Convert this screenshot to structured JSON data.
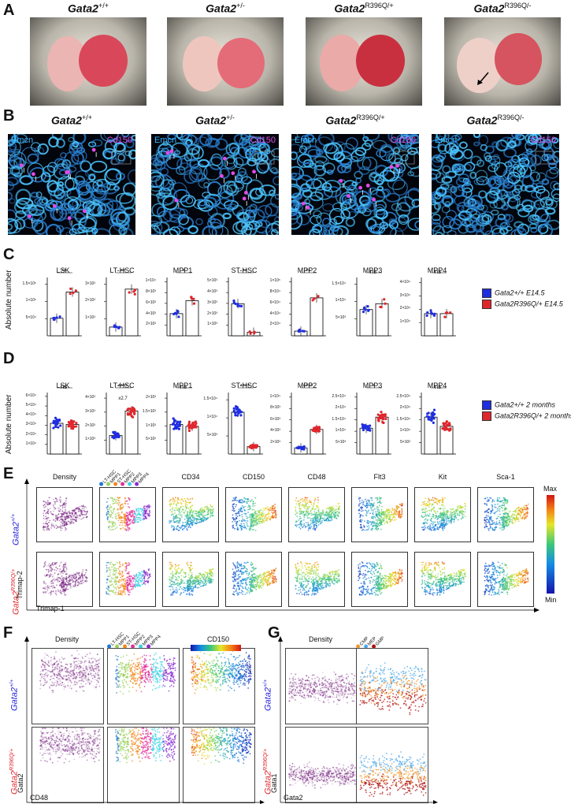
{
  "panels": [
    "A",
    "B",
    "C",
    "D",
    "E",
    "F",
    "G"
  ],
  "genotypes": [
    {
      "base": "Gata2",
      "sup": "+/+",
      "color": "#1a1ad6"
    },
    {
      "base": "Gata2",
      "sup": "+/-"
    },
    {
      "base": "Gata2",
      "sup": "R396Q/+",
      "color": "#e0262c"
    },
    {
      "base": "Gata2",
      "sup": "R396Q/-"
    }
  ],
  "panelB": {
    "stain1": "Emcn",
    "stain2": "Cd150",
    "stain1_color": "#39b6ff",
    "stain2_color": "#e24be8"
  },
  "panelC": {
    "ylabel": "Absolute number",
    "legend": [
      {
        "label": "Gata2+/+ E14.5",
        "color": "#1f2ee0"
      },
      {
        "label": "Gata2R396Q/+ E14.5",
        "color": "#e0262c"
      }
    ],
    "plots": [
      {
        "title": "LSK",
        "sig": "**",
        "yticks": [
          "5×10⁴",
          "1×10⁵",
          "1.5×10⁵"
        ]
      },
      {
        "title": "LT-HSC",
        "sig": "**",
        "yticks": [
          "1×10³",
          "2×10³",
          "3×10³"
        ]
      },
      {
        "title": "MPP1",
        "sig": "*",
        "yticks": [
          "2×10³",
          "4×10³",
          "6×10³",
          "8×10³",
          "1×10⁴"
        ]
      },
      {
        "title": "ST-HSC",
        "sig": "**",
        "yticks": [
          "1×10³",
          "2×10³",
          "3×10³",
          "4×10³",
          "5×10³"
        ]
      },
      {
        "title": "MPP2",
        "sig": "**",
        "yticks": [
          "2×10⁴",
          "4×10⁴",
          "6×10⁴",
          "8×10⁴",
          "1×10⁵"
        ]
      },
      {
        "title": "MPP3",
        "sig": "ns",
        "yticks": [
          "5×10³",
          "1×10⁴",
          "1.5×10⁴"
        ]
      },
      {
        "title": "MPP4",
        "sig": "ns",
        "yticks": [
          "1×10⁴",
          "2×10⁴",
          "3×10⁴",
          "4×10⁴"
        ]
      }
    ]
  },
  "panelD": {
    "ylabel": "Absolute number",
    "legend": [
      {
        "label": "Gata2+/+ 2 months",
        "color": "#1f2ee0"
      },
      {
        "label": "Gata2R396Q/+ 2 months",
        "color": "#e0262c"
      }
    ],
    "plots": [
      {
        "title": "LSK",
        "sig": "ns",
        "yticks": [
          "1×10⁴",
          "2×10⁴",
          "3×10⁴",
          "4×10⁴",
          "5×10⁴",
          "6×10⁴"
        ]
      },
      {
        "title": "LT-HSC",
        "sig": "****",
        "note": "x2.7",
        "yticks": [
          "1×10³",
          "2×10³",
          "3×10³",
          "4×10³"
        ]
      },
      {
        "title": "MPP1",
        "sig": "ns",
        "yticks": [
          "5×10²",
          "1×10³",
          "1.5×10³",
          "2×10³"
        ]
      },
      {
        "title": "ST-HSC",
        "sig": "****",
        "yticks": [
          "5×10³",
          "1×10⁴",
          "1.5×10⁴"
        ]
      },
      {
        "title": "MPP2",
        "sig": "****",
        "yticks": [
          "2×10³",
          "4×10³",
          "6×10³",
          "8×10³",
          "1×10⁴"
        ]
      },
      {
        "title": "MPP3",
        "sig": "*",
        "yticks": [
          "5×10³",
          "1×10⁴",
          "1.5×10⁴",
          "2×10⁴",
          "2.5×10⁴"
        ]
      },
      {
        "title": "MPP4",
        "sig": "ns",
        "yticks": [
          "5×10³",
          "1×10⁴",
          "1.5×10⁴",
          "2×10⁴",
          "2.5×10⁴"
        ]
      }
    ]
  },
  "panelE": {
    "columns": [
      "Density",
      "",
      "CD34",
      "CD150",
      "CD48",
      "Flt3",
      "Kit",
      "Sca-1"
    ],
    "populations": [
      "LT-HSC",
      "MPP1",
      "ST-HSC",
      "MPP2",
      "MPP3",
      "MPP4"
    ],
    "population_colors": [
      "#1f78d0",
      "#9bd25a",
      "#f08a1c",
      "#e0329c",
      "#3cd2e6",
      "#8a2bd0"
    ],
    "xlabel": "Trimap-1",
    "ylabel": "Trimap-2",
    "scale_max": "Max",
    "scale_min": "Min"
  },
  "panelF": {
    "columns": [
      "Density",
      "",
      "CD150"
    ],
    "populations": [
      "LT-HSC",
      "MPP1",
      "ST-HSC",
      "MPP2",
      "MPP3",
      "MPP4"
    ],
    "xlabel": "CD48",
    "ylabel": "Gata2"
  },
  "panelG": {
    "columns": [
      "Density",
      ""
    ],
    "populations": [
      "CMP",
      "MEP",
      "GMP"
    ],
    "population_colors": [
      "#f09a30",
      "#4fa8e8",
      "#b01010"
    ],
    "xlabel": "Gata2",
    "ylabel": "Gata1"
  }
}
